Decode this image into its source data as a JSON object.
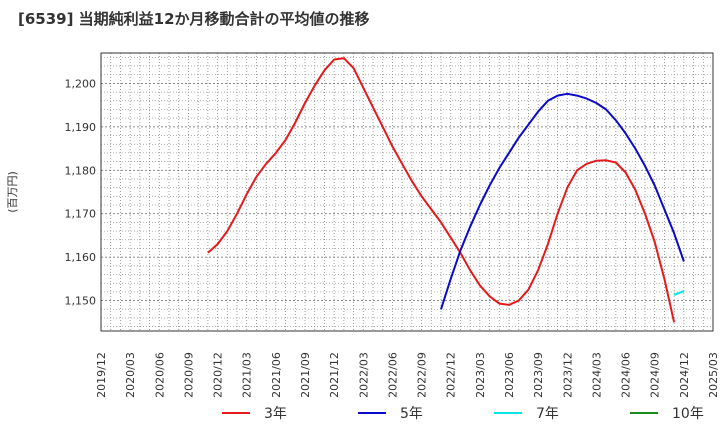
{
  "chart_data": {
    "type": "line",
    "title": "[6539]  当期純利益12か月移動合計の平均値の推移",
    "ylabel": "(百万円)",
    "xlabel": "",
    "ylim": [
      1143,
      1207
    ],
    "x_ticks": [
      "2019/12",
      "2020/03",
      "2020/06",
      "2020/09",
      "2020/12",
      "2021/03",
      "2021/06",
      "2021/09",
      "2021/12",
      "2022/03",
      "2022/06",
      "2022/09",
      "2022/12",
      "2023/03",
      "2023/06",
      "2023/09",
      "2023/12",
      "2024/03",
      "2024/06",
      "2024/09",
      "2024/12",
      "2025/03"
    ],
    "y_ticks": [
      1150,
      1160,
      1170,
      1180,
      1190,
      1200
    ],
    "y_tick_labels": [
      "1,150",
      "1,160",
      "1,170",
      "1,180",
      "1,190",
      "1,200"
    ],
    "grid": true,
    "legend_position": "bottom",
    "series": [
      {
        "name": "3年",
        "color": "#e41a1c",
        "start": "2020/11",
        "values": [
          1161,
          1163,
          1166,
          1170,
          1174.5,
          1178.5,
          1181.5,
          1184,
          1187,
          1191,
          1195.5,
          1199.5,
          1203,
          1205.5,
          1205.8,
          1203.5,
          1199,
          1194.5,
          1190,
          1185.5,
          1181.5,
          1177.5,
          1174,
          1171,
          1168,
          1164.5,
          1161,
          1157,
          1153.5,
          1151,
          1149.3,
          1149,
          1150,
          1152.5,
          1157,
          1163,
          1170,
          1176,
          1180,
          1181.5,
          1182.2,
          1182.3,
          1181.8,
          1179.5,
          1175.5,
          1170,
          1163.5,
          1155,
          1145
        ]
      },
      {
        "name": "5年",
        "color": "#0a0ac8",
        "start": "2022/11",
        "values": [
          1148,
          1155,
          1161.5,
          1167,
          1172,
          1176.5,
          1180.5,
          1184,
          1187.5,
          1190.5,
          1193.5,
          1196,
          1197.2,
          1197.6,
          1197.2,
          1196.5,
          1195.5,
          1194,
          1191.5,
          1188.5,
          1185,
          1181,
          1176.5,
          1171,
          1165.5,
          1159
        ]
      },
      {
        "name": "7年",
        "color": "#00e5e5",
        "start": "2024/11",
        "values": [
          1151.3,
          1152.2
        ]
      },
      {
        "name": "10年",
        "color": "#1a8a1a",
        "start": "2024/12",
        "values": []
      }
    ]
  }
}
